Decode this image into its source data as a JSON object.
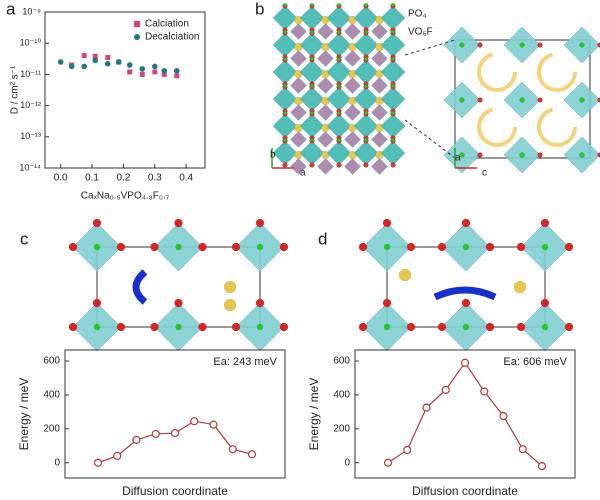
{
  "panel_labels": [
    "a",
    "b",
    "c",
    "d"
  ],
  "structure": {
    "labels": [
      "PO₄",
      "VO₅F"
    ],
    "axes": [
      "b",
      "a",
      "a",
      "c"
    ]
  },
  "chart_data": [
    {
      "type": "scatter",
      "xlabel": "CaₓNa₀.₅VPO₄.₈F₀.₇",
      "ylabel": "D / cm² s⁻¹",
      "log_y": true,
      "legend": "upper right",
      "xlim": [
        -0.05,
        0.46
      ],
      "xticks": [
        {
          "value": 0,
          "label": "0.0"
        },
        0.1,
        0.2,
        0.3,
        0.4
      ],
      "ylim": [
        1e-14,
        1e-09
      ],
      "yticks": [
        {
          "value": 1e-14,
          "label": "10⁻¹⁴"
        },
        {
          "value": 1e-13,
          "label": "10⁻¹³"
        },
        {
          "value": 1e-12,
          "label": "10⁻¹²"
        },
        {
          "value": 1e-11,
          "label": "10⁻¹¹"
        },
        {
          "value": 1e-10,
          "label": "10⁻¹⁰"
        },
        {
          "value": 1e-09,
          "label": "10⁻⁹"
        }
      ],
      "series": [
        {
          "name": "Calciation",
          "color": "#d8437a",
          "marker": "square",
          "x": [
            0.035,
            0.075,
            0.11,
            0.15,
            0.185,
            0.22,
            0.26,
            0.3,
            0.33,
            0.37
          ],
          "values": [
            2e-11,
            4e-11,
            3.8e-11,
            3.5e-11,
            2.5e-11,
            1.2e-11,
            1e-11,
            1.2e-11,
            1e-11,
            9e-12
          ]
        },
        {
          "name": "Decalciation",
          "color": "#1f7a80",
          "marker": "circle",
          "x": [
            0,
            0.035,
            0.075,
            0.11,
            0.15,
            0.185,
            0.22,
            0.26,
            0.3,
            0.33,
            0.37
          ],
          "values": [
            2.5e-11,
            1.8e-11,
            1.8e-11,
            2.8e-11,
            2.2e-11,
            2.5e-11,
            2e-11,
            1.5e-11,
            1.8e-11,
            1.3e-11,
            1.3e-11
          ]
        }
      ]
    },
    {
      "type": "line",
      "annotation": "Ea: 243 meV",
      "xlabel": "Diffusion coordinate",
      "ylabel": "Energy / meV",
      "categories": [
        null,
        null,
        null,
        null,
        null,
        null,
        null,
        null,
        null
      ],
      "values": [
        0,
        40,
        135,
        170,
        175,
        245,
        225,
        80,
        50
      ],
      "color": "#b03a3a",
      "ylim": [
        -90,
        665
      ],
      "yticks": [
        0,
        200,
        400,
        600
      ]
    },
    {
      "type": "line",
      "annotation": "Ea: 606 meV",
      "xlabel": "Diffusion coordinate",
      "ylabel": "Energy / meV",
      "categories": [
        null,
        null,
        null,
        null,
        null,
        null,
        null,
        null,
        null
      ],
      "values": [
        0,
        75,
        325,
        430,
        590,
        420,
        275,
        80,
        -20
      ],
      "color": "#b03a3a",
      "ylim": [
        -90,
        665
      ],
      "yticks": [
        0,
        200,
        400,
        600
      ]
    }
  ]
}
